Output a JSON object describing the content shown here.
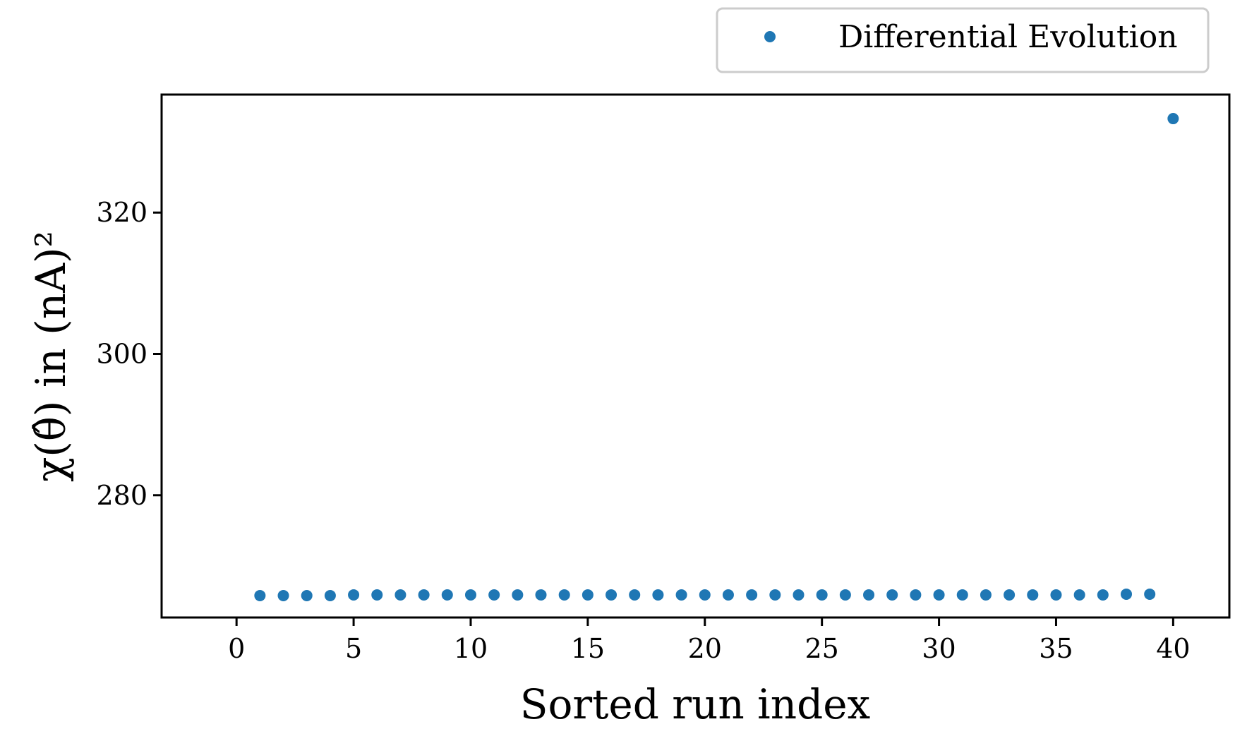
{
  "chart_data": {
    "type": "scatter",
    "xlabel": "Sorted run index",
    "ylabel": "χ(θ̂) in (nA)²",
    "xlim": [
      -3.2,
      42.4
    ],
    "ylim": [
      262.7,
      336.7
    ],
    "xticks": [
      0,
      5,
      10,
      15,
      20,
      25,
      30,
      35,
      40
    ],
    "yticks": [
      280,
      300,
      320
    ],
    "grid": false,
    "legend_position": "top-right",
    "series": [
      {
        "name": "Differential Evolution",
        "color": "#1f77b4",
        "x": [
          1,
          2,
          3,
          4,
          5,
          6,
          7,
          8,
          9,
          10,
          11,
          12,
          13,
          14,
          15,
          16,
          17,
          18,
          19,
          20,
          21,
          22,
          23,
          24,
          25,
          26,
          27,
          28,
          29,
          30,
          31,
          32,
          33,
          34,
          35,
          36,
          37,
          38,
          39,
          40
        ],
        "y": [
          265.8,
          265.8,
          265.8,
          265.8,
          265.9,
          265.9,
          265.9,
          265.9,
          265.9,
          265.9,
          265.9,
          265.9,
          265.9,
          265.9,
          265.9,
          265.9,
          265.9,
          265.9,
          265.9,
          265.9,
          265.9,
          265.9,
          265.9,
          265.9,
          265.9,
          265.9,
          265.9,
          265.9,
          265.9,
          265.9,
          265.9,
          265.9,
          265.9,
          265.9,
          265.9,
          265.9,
          265.9,
          266.0,
          266.0,
          333.3
        ]
      }
    ]
  }
}
